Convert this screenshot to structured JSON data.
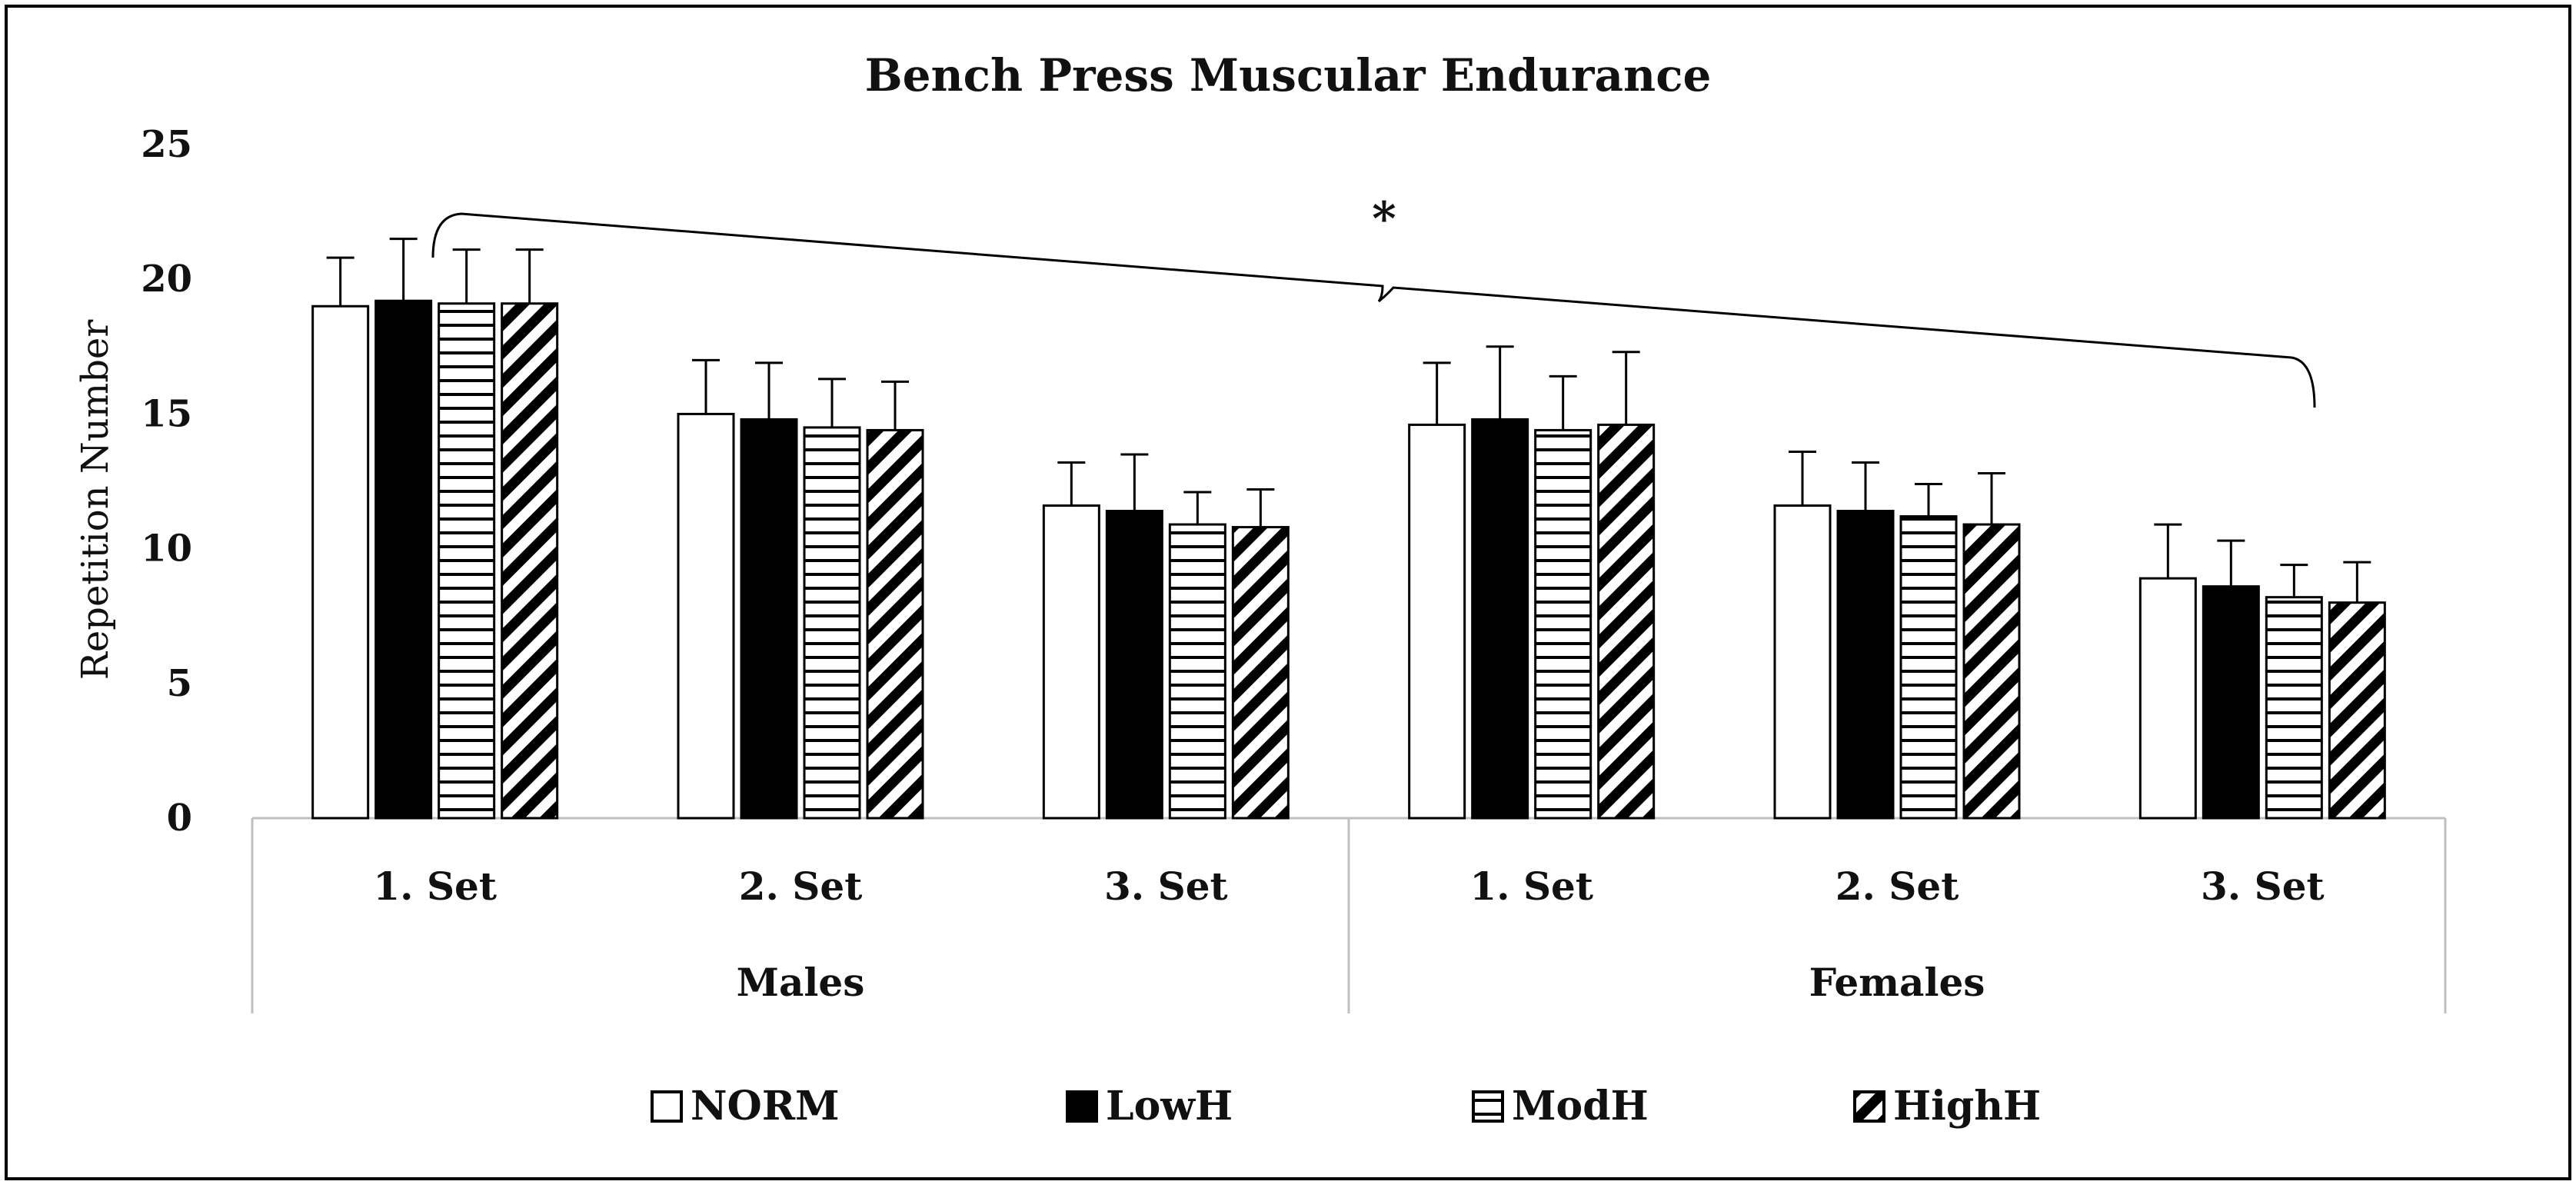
{
  "chart_data": {
    "type": "bar",
    "title": "Bench Press Muscular Endurance",
    "xlabel": "",
    "ylabel": "Repetition Number",
    "ylim": [
      0,
      25
    ],
    "yticks": [
      0,
      5,
      10,
      15,
      20,
      25
    ],
    "grid": false,
    "legend_position": "bottom",
    "groups": [
      "Males",
      "Females"
    ],
    "categories": [
      "1. Set",
      "2. Set",
      "3. Set",
      "1. Set",
      "2. Set",
      "3. Set"
    ],
    "series": [
      {
        "name": "NORM",
        "pattern": "open",
        "values": [
          19.0,
          15.0,
          11.6,
          14.6,
          11.6,
          8.9
        ],
        "errors": [
          1.8,
          2.0,
          1.6,
          2.3,
          2.0,
          2.0
        ]
      },
      {
        "name": "LowH",
        "pattern": "solid",
        "values": [
          19.2,
          14.8,
          11.4,
          14.8,
          11.4,
          8.6
        ],
        "errors": [
          2.3,
          2.1,
          2.1,
          2.7,
          1.8,
          1.7
        ]
      },
      {
        "name": "ModH",
        "pattern": "horizontal",
        "values": [
          19.1,
          14.5,
          10.9,
          14.4,
          11.2,
          8.2
        ],
        "errors": [
          2.0,
          1.8,
          1.2,
          2.0,
          1.2,
          1.2
        ]
      },
      {
        "name": "HighH",
        "pattern": "diagonal",
        "values": [
          19.1,
          14.4,
          10.8,
          14.6,
          10.9,
          8.0
        ],
        "errors": [
          2.0,
          1.8,
          1.4,
          2.7,
          1.9,
          1.5
        ]
      }
    ],
    "annotations": [
      {
        "text": "*",
        "type": "significance-brace",
        "spans": "Males 1. Set to Females 3. Set"
      }
    ],
    "colors": {
      "bar_stroke": "#000000",
      "fill_open": "#ffffff",
      "fill_solid": "#000000",
      "axis": "#bfbfbf",
      "frame": "#000000"
    }
  }
}
